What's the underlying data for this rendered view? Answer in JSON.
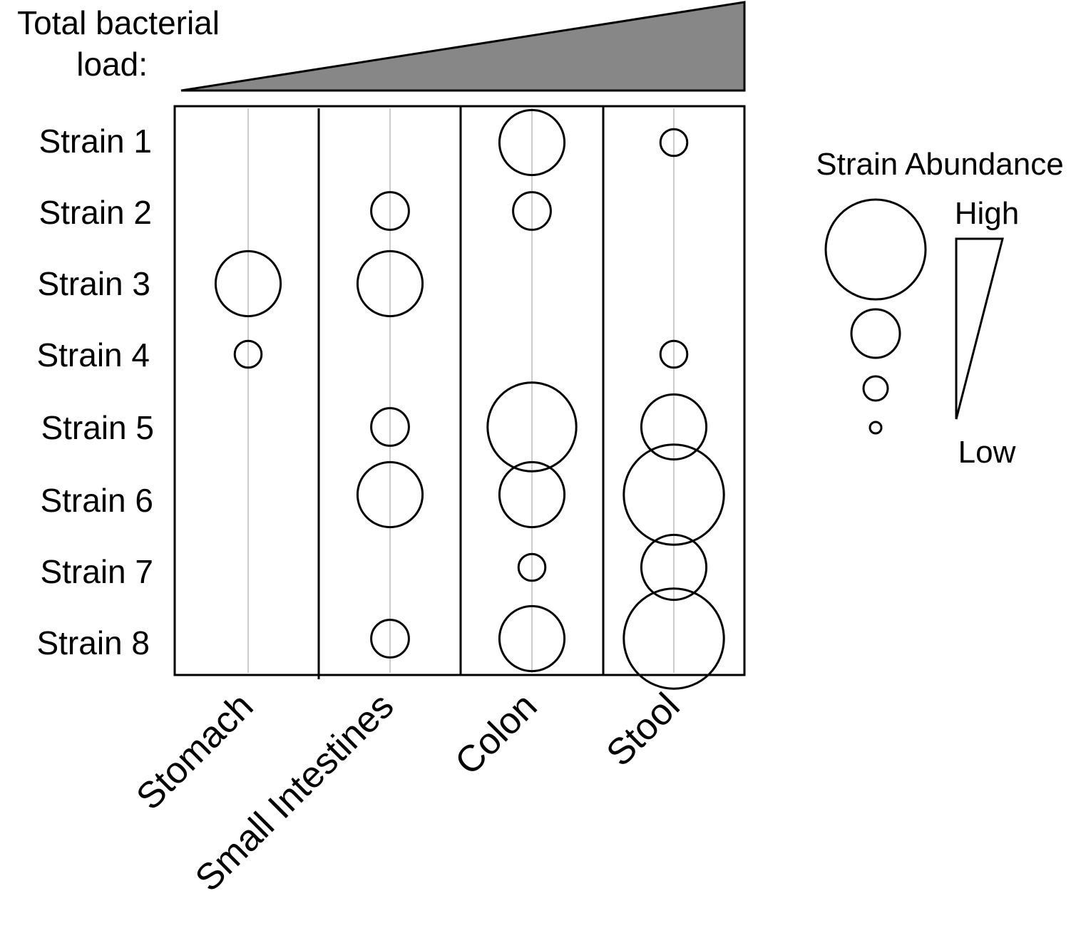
{
  "load_label": [
    "Total bacterial",
    "load:"
  ],
  "strains": [
    "Strain 1",
    "Strain 2",
    "Strain 3",
    "Strain 4",
    "Strain 5",
    "Strain 6",
    "Strain 7",
    "Strain 8"
  ],
  "sites": [
    "Stomach",
    "Small Intestines",
    "Colon",
    "Stool"
  ],
  "legend": {
    "title": "Strain Abundance",
    "high": "High",
    "low": "Low",
    "levels": [
      4,
      3,
      2,
      1
    ]
  },
  "colors": {
    "load_fill": "#878787",
    "stroke": "#000000",
    "guide": "#9a9a9a"
  },
  "abundance": [
    {
      "strain": "Strain 1",
      "site": "Colon",
      "level": 3.5
    },
    {
      "strain": "Strain 1",
      "site": "Stool",
      "level": 2
    },
    {
      "strain": "Strain 2",
      "site": "Small Intestines",
      "level": 2.5
    },
    {
      "strain": "Strain 2",
      "site": "Colon",
      "level": 2.5
    },
    {
      "strain": "Strain 3",
      "site": "Stomach",
      "level": 3.5
    },
    {
      "strain": "Strain 3",
      "site": "Small Intestines",
      "level": 3.5
    },
    {
      "strain": "Strain 4",
      "site": "Stomach",
      "level": 2
    },
    {
      "strain": "Strain 4",
      "site": "Stool",
      "level": 2
    },
    {
      "strain": "Strain 5",
      "site": "Small Intestines",
      "level": 2.5
    },
    {
      "strain": "Strain 5",
      "site": "Colon",
      "level": 4.2
    },
    {
      "strain": "Strain 5",
      "site": "Stool",
      "level": 3.5
    },
    {
      "strain": "Strain 6",
      "site": "Small Intestines",
      "level": 3.5
    },
    {
      "strain": "Strain 6",
      "site": "Colon",
      "level": 3.5
    },
    {
      "strain": "Strain 6",
      "site": "Stool",
      "level": 4.5
    },
    {
      "strain": "Strain 7",
      "site": "Colon",
      "level": 2
    },
    {
      "strain": "Strain 7",
      "site": "Stool",
      "level": 3.5
    },
    {
      "strain": "Strain 8",
      "site": "Small Intestines",
      "level": 2.5
    },
    {
      "strain": "Strain 8",
      "site": "Colon",
      "level": 3.5
    },
    {
      "strain": "Strain 8",
      "site": "Stool",
      "level": 4.5
    }
  ]
}
